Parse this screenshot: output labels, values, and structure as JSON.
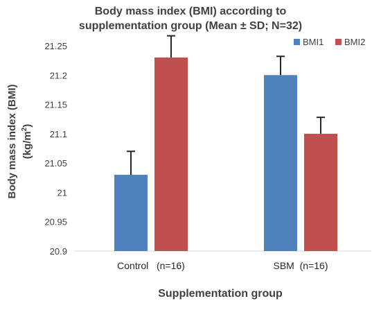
{
  "chart_data": {
    "type": "bar",
    "title_line1": "Body mass index (BMI) according to",
    "title_line2": "supplementation group (Mean ± SD; N=32)",
    "xlabel": "Supplementation group",
    "ylabel_line1": "Body mass index (BMI)",
    "ylabel_line2_base": "(kg/m",
    "ylabel_line2_sup": "2",
    "ylabel_line2_end": ")",
    "categories": [
      "Control   (n=16)",
      "SBM  (n=16)"
    ],
    "series": [
      {
        "name": "BMI1",
        "color": "#4f81bd",
        "values": [
          21.03,
          21.2
        ],
        "errors": [
          0.04,
          0.032
        ]
      },
      {
        "name": "BMI2",
        "color": "#c0504d",
        "values": [
          21.23,
          21.1
        ],
        "errors": [
          0.037,
          0.028
        ]
      }
    ],
    "ylim": [
      20.9,
      21.25
    ],
    "yticks": [
      "20.9",
      "20.95",
      "21",
      "21.05",
      "21.1",
      "21.15",
      "21.2",
      "21.25"
    ],
    "grid": false,
    "legend_position": "top-right"
  }
}
